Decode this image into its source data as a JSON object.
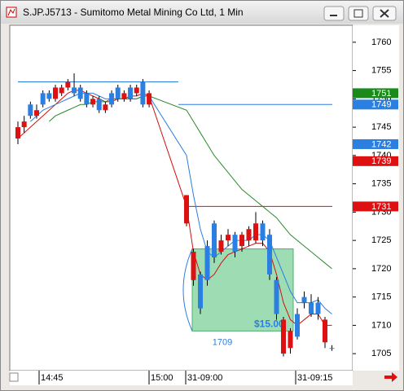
{
  "chart_data": {
    "type": "candlestick",
    "title": "S.JP.J5713 - Sumitomo Metal Mining Co Ltd, 1 Min",
    "x_labels": [
      "14:45",
      "15:00",
      "31-09:00",
      "31-09:15"
    ],
    "ylim": [
      1702,
      1763
    ],
    "yticks": [
      1705,
      1710,
      1715,
      1720,
      1725,
      1730,
      1735,
      1740,
      1745,
      1750,
      1755,
      1760
    ],
    "up_color": "#dd1111",
    "down_color": "#2a7fe0",
    "open": [
      1743,
      1745,
      1749,
      1747,
      1751,
      1751,
      1750,
      1751,
      1752,
      1752,
      1752,
      1751,
      1749,
      1750,
      1748,
      1751,
      1752,
      1750,
      1752,
      1751,
      1753,
      1749,
      1728,
      1718,
      1719,
      1724,
      1728,
      1723,
      1725,
      1726,
      1724,
      1725,
      1725,
      1728,
      1726,
      1718,
      1705,
      1706,
      1712,
      1715,
      1714,
      1714,
      1707,
      1706
    ],
    "high": [
      1746,
      1747,
      1749.5,
      1749,
      1751.5,
      1751.5,
      1752.5,
      1752.5,
      1753.5,
      1754.5,
      1752.5,
      1751.5,
      1750.5,
      1750.5,
      1749.5,
      1751.5,
      1752.5,
      1751.5,
      1752.5,
      1752.5,
      1753.5,
      1751.5,
      1733,
      1723.5,
      1719.5,
      1725,
      1728.5,
      1726,
      1727,
      1726.5,
      1726.5,
      1727.5,
      1730,
      1728.5,
      1727,
      1718.5,
      1711.5,
      1709.5,
      1713,
      1716,
      1715.5,
      1715,
      1711.5,
      1706.5
    ],
    "low": [
      1742,
      1744,
      1746.5,
      1746.5,
      1748.5,
      1749.5,
      1749.5,
      1750.5,
      1751.5,
      1750.5,
      1749.5,
      1748.5,
      1748.5,
      1747.5,
      1747.5,
      1748.5,
      1749.5,
      1749.5,
      1749.5,
      1750.5,
      1748.5,
      1748.5,
      1727.5,
      1717,
      1712,
      1717,
      1721,
      1722.5,
      1724,
      1722,
      1723,
      1724,
      1724.5,
      1724,
      1718,
      1711,
      1704.5,
      1705,
      1707.5,
      1713,
      1711.5,
      1711,
      1706,
      1705.5
    ],
    "close": [
      1745,
      1746,
      1747,
      1748,
      1749,
      1750,
      1752,
      1752,
      1753,
      1751,
      1750,
      1749,
      1750,
      1748,
      1749,
      1749,
      1750,
      1751,
      1750,
      1752,
      1749,
      1751,
      1733,
      1723,
      1713,
      1718,
      1722,
      1725,
      1726,
      1723,
      1726,
      1727,
      1728,
      1725,
      1719,
      1712,
      1711,
      1709,
      1708,
      1714,
      1712,
      1712,
      1711,
      1706
    ],
    "series": [
      {
        "color": "#d01010",
        "values": [
          1743,
          1744,
          1745,
          1746,
          1747,
          1748,
          1749,
          1750,
          1751,
          1751.5,
          1751.5,
          1751,
          1750.5,
          1750,
          1749.5,
          1749.5,
          1750,
          1750,
          1750.5,
          1750.5,
          1751,
          1750.5,
          1731,
          1723,
          1719,
          1718,
          1719,
          1721,
          1722.5,
          1723,
          1723.5,
          1724,
          1724.5,
          1724.5,
          1723,
          1719,
          1714,
          1711,
          1710,
          1711,
          1712,
          1712,
          1710,
          1710
        ]
      },
      {
        "color": "#2a7fe0",
        "values": [
          null,
          null,
          1746,
          1747,
          1748,
          1748.5,
          1749,
          1749.5,
          1750,
          1750.5,
          1751,
          1751,
          1751,
          1750.5,
          1750,
          1750,
          1750,
          1750,
          1750,
          1750,
          1750.5,
          1750.5,
          1740,
          1733,
          1727,
          1723,
          1722,
          1723,
          1724,
          1725,
          1725,
          1725,
          1726,
          1726,
          1725,
          1722,
          1719,
          1716,
          1714,
          1714,
          1714,
          1714.5,
          1713,
          1712
        ]
      },
      {
        "color": "#2a8a2a",
        "values": [
          null,
          null,
          null,
          null,
          null,
          1746,
          1747,
          1747.5,
          1748,
          1748.5,
          1749,
          1749,
          1749.5,
          1749.5,
          1749.5,
          1750,
          1750,
          1750,
          1750,
          1750,
          1750.5,
          1750.5,
          1748,
          1746,
          1744,
          1742,
          1740,
          1738.5,
          1737,
          1735.5,
          1734,
          1733,
          1732,
          1731,
          1730,
          1729,
          1727.5,
          1726,
          1725,
          1724,
          1723,
          1722,
          1721,
          1720
        ]
      }
    ],
    "hlines": [
      {
        "value": 1753,
        "color": "#2a7fe0"
      },
      {
        "value": 1749,
        "color": "#2a7fe0"
      },
      {
        "value": 1731,
        "color": "#dd1111"
      }
    ],
    "badges": [
      {
        "value": 1751,
        "color": "#1a8a1a"
      },
      {
        "value": 1749,
        "color": "#2a7fe0"
      },
      {
        "value": 1742,
        "color": "#2a7fe0"
      },
      {
        "value": 1739,
        "color": "#dd1111"
      },
      {
        "value": 1731,
        "color": "#dd1111"
      }
    ],
    "box": {
      "top": 1723.5,
      "bottom": 1709,
      "label": "$15.00"
    }
  }
}
